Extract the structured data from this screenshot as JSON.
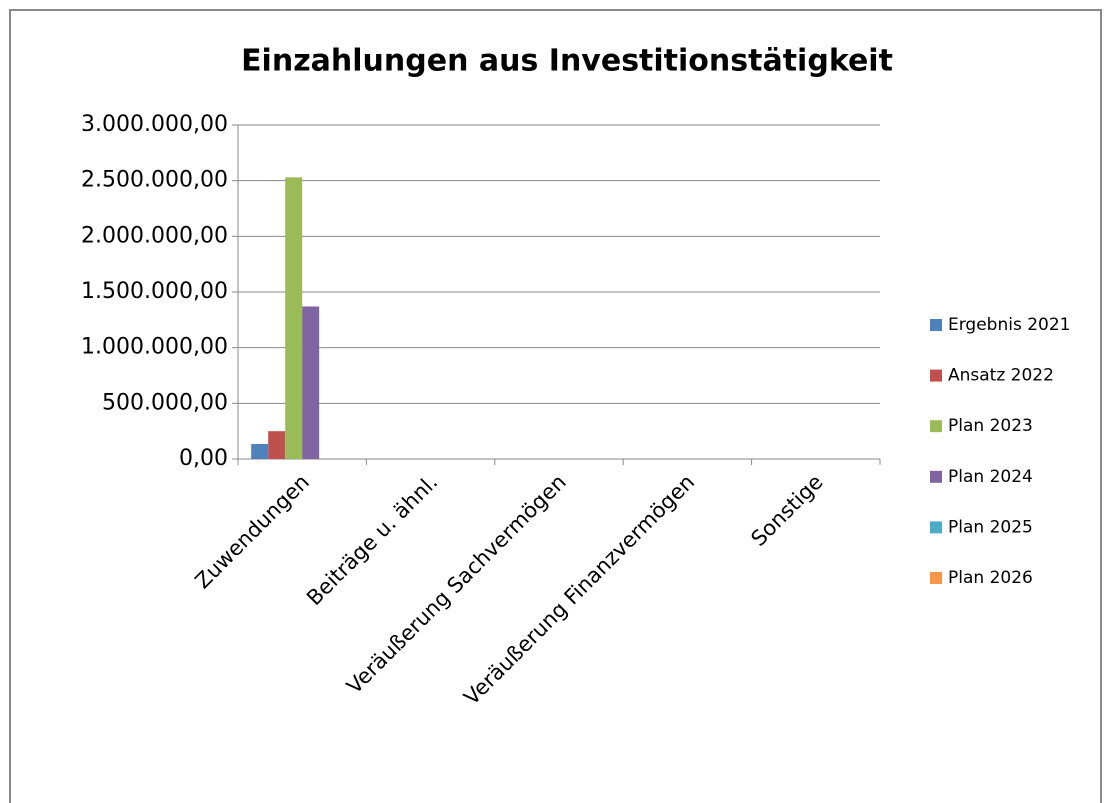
{
  "chart_data": {
    "type": "bar",
    "title": "Einzahlungen aus Investitionstätigkeit",
    "categories": [
      "Zuwendungen",
      "Beiträge u. ähnl.",
      "Veräußerung Sachvermögen",
      "Veräußerung Finanzvermögen",
      "Sonstige"
    ],
    "series": [
      {
        "name": "Ergebnis 2021",
        "color": "#4f81bd",
        "values": [
          135000,
          0,
          0,
          0,
          0
        ]
      },
      {
        "name": "Ansatz 2022",
        "color": "#c0504d",
        "values": [
          250000,
          0,
          0,
          0,
          0
        ]
      },
      {
        "name": "Plan 2023",
        "color": "#9bbb59",
        "values": [
          2530000,
          0,
          0,
          0,
          0
        ]
      },
      {
        "name": "Plan 2024",
        "color": "#8064a2",
        "values": [
          1370000,
          0,
          0,
          0,
          0
        ]
      },
      {
        "name": "Plan 2025",
        "color": "#4bacc6",
        "values": [
          0,
          0,
          0,
          0,
          0
        ]
      },
      {
        "name": "Plan 2026",
        "color": "#f79646",
        "values": [
          0,
          0,
          0,
          0,
          0
        ]
      }
    ],
    "ylim": [
      0,
      3000000
    ],
    "yticks": [
      {
        "value": 0,
        "label": "0,00"
      },
      {
        "value": 500000,
        "label": "500.000,00"
      },
      {
        "value": 1000000,
        "label": "1.000.000,00"
      },
      {
        "value": 1500000,
        "label": "1.500.000,00"
      },
      {
        "value": 2000000,
        "label": "2.000.000,00"
      },
      {
        "value": 2500000,
        "label": "2.500.000,00"
      },
      {
        "value": 3000000,
        "label": "3.000.000,00"
      }
    ],
    "grid": true,
    "legend": "right"
  }
}
